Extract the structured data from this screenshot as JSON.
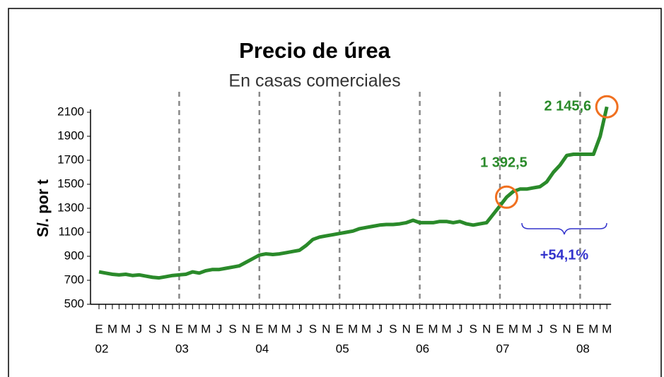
{
  "chart_data": {
    "type": "line",
    "title": "Precio de úrea",
    "subtitle": "En casas comerciales",
    "y_label": "S/. por t",
    "annotation": "+54,1%",
    "categories": [
      "E",
      null,
      "M",
      null,
      "M",
      null,
      "J",
      null,
      "S",
      null,
      "N",
      null,
      "E",
      null,
      "M",
      null,
      "M",
      null,
      "J",
      null,
      "S",
      null,
      "N",
      null,
      "E",
      null,
      "M",
      null,
      "M",
      null,
      "J",
      null,
      "S",
      null,
      "N",
      null,
      "E",
      null,
      "M",
      null,
      "M",
      null,
      "J",
      null,
      "S",
      null,
      "N",
      null,
      "E",
      null,
      "M",
      null,
      "M",
      null,
      "J",
      null,
      "S",
      null,
      "N",
      null,
      "E",
      null,
      "M",
      null,
      "M",
      null,
      "J",
      null,
      "S",
      null,
      "N",
      null,
      "E",
      null,
      "M",
      null,
      "M"
    ],
    "year_labels": [
      "02",
      "03",
      "04",
      "05",
      "06",
      "07",
      "08"
    ],
    "series": [
      {
        "name": "Precio de úrea",
        "color": "#2a8a2a",
        "values": [
          770,
          760,
          750,
          745,
          750,
          740,
          745,
          735,
          725,
          720,
          730,
          740,
          745,
          750,
          770,
          760,
          780,
          790,
          790,
          800,
          810,
          820,
          850,
          880,
          910,
          920,
          915,
          920,
          930,
          940,
          950,
          990,
          1040,
          1060,
          1070,
          1080,
          1090,
          1100,
          1110,
          1130,
          1140,
          1150,
          1160,
          1165,
          1165,
          1170,
          1180,
          1200,
          1180,
          1180,
          1180,
          1190,
          1190,
          1180,
          1190,
          1170,
          1160,
          1170,
          1180,
          1250,
          1320,
          1392.5,
          1440,
          1460,
          1460,
          1470,
          1480,
          1520,
          1600,
          1660,
          1740,
          1750,
          1750,
          1750,
          1750,
          1900,
          2145.6
        ]
      }
    ],
    "value_labels": [
      null,
      null,
      null,
      null,
      null,
      null,
      null,
      null,
      null,
      null,
      null,
      null,
      null,
      null,
      null,
      null,
      null,
      null,
      null,
      null,
      null,
      null,
      null,
      null,
      null,
      null,
      null,
      null,
      null,
      null,
      null,
      null,
      null,
      null,
      null,
      null,
      null,
      null,
      null,
      null,
      null,
      null,
      null,
      null,
      null,
      null,
      null,
      null,
      null,
      null,
      null,
      null,
      null,
      null,
      null,
      null,
      null,
      null,
      null,
      null,
      null,
      "1 392,5",
      null,
      null,
      null,
      null,
      null,
      null,
      null,
      null,
      null,
      null,
      null,
      null,
      null,
      null,
      "2 145,6"
    ],
    "ylim": [
      500,
      2100
    ],
    "yticks": [
      500,
      700,
      900,
      1100,
      1300,
      1500,
      1700,
      1900,
      2100
    ]
  }
}
